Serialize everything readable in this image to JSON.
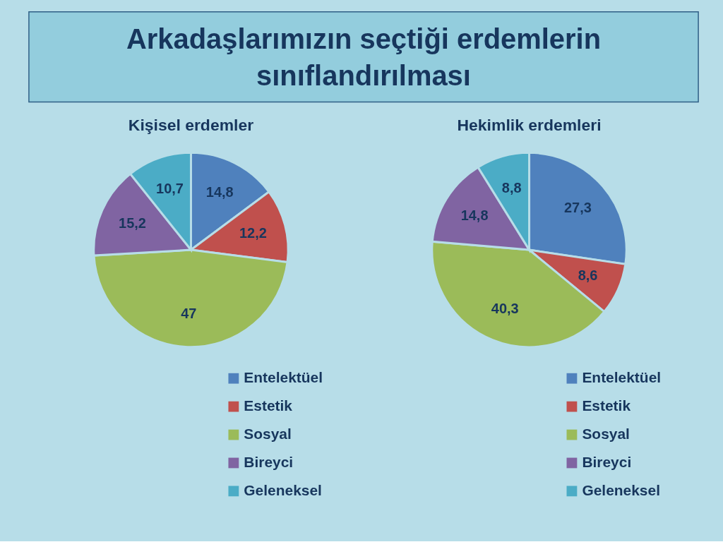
{
  "chart_data": [
    {
      "type": "other",
      "title": "Arkadaşlarımızın seçtiği erdemlerin sınıflandırılması"
    },
    {
      "type": "pie",
      "title": "Kişisel erdemler",
      "categories": [
        "Entelektüel",
        "Estetik",
        "Sosyal",
        "Bireyci",
        "Geleneksel"
      ],
      "values": [
        14.8,
        12.2,
        47,
        15.2,
        10.7
      ],
      "colors": [
        "#4f81bd",
        "#c0504d",
        "#9bbb59",
        "#8064a2",
        "#4bacc6"
      ],
      "value_labels": [
        "14,8",
        "12,2",
        "47",
        "15,2",
        "10,7"
      ],
      "legend": "bottom"
    },
    {
      "type": "pie",
      "title": "Hekimlik erdemleri",
      "categories": [
        "Entelektüel",
        "Estetik",
        "Sosyal",
        "Bireyci",
        "Geleneksel"
      ],
      "values": [
        27.3,
        8.6,
        40.3,
        14.8,
        8.8
      ],
      "colors": [
        "#4f81bd",
        "#c0504d",
        "#9bbb59",
        "#8064a2",
        "#4bacc6"
      ],
      "value_labels": [
        "27,3",
        "8,6",
        "40,3",
        "14,8",
        "8,8"
      ],
      "legend": "bottom"
    }
  ]
}
